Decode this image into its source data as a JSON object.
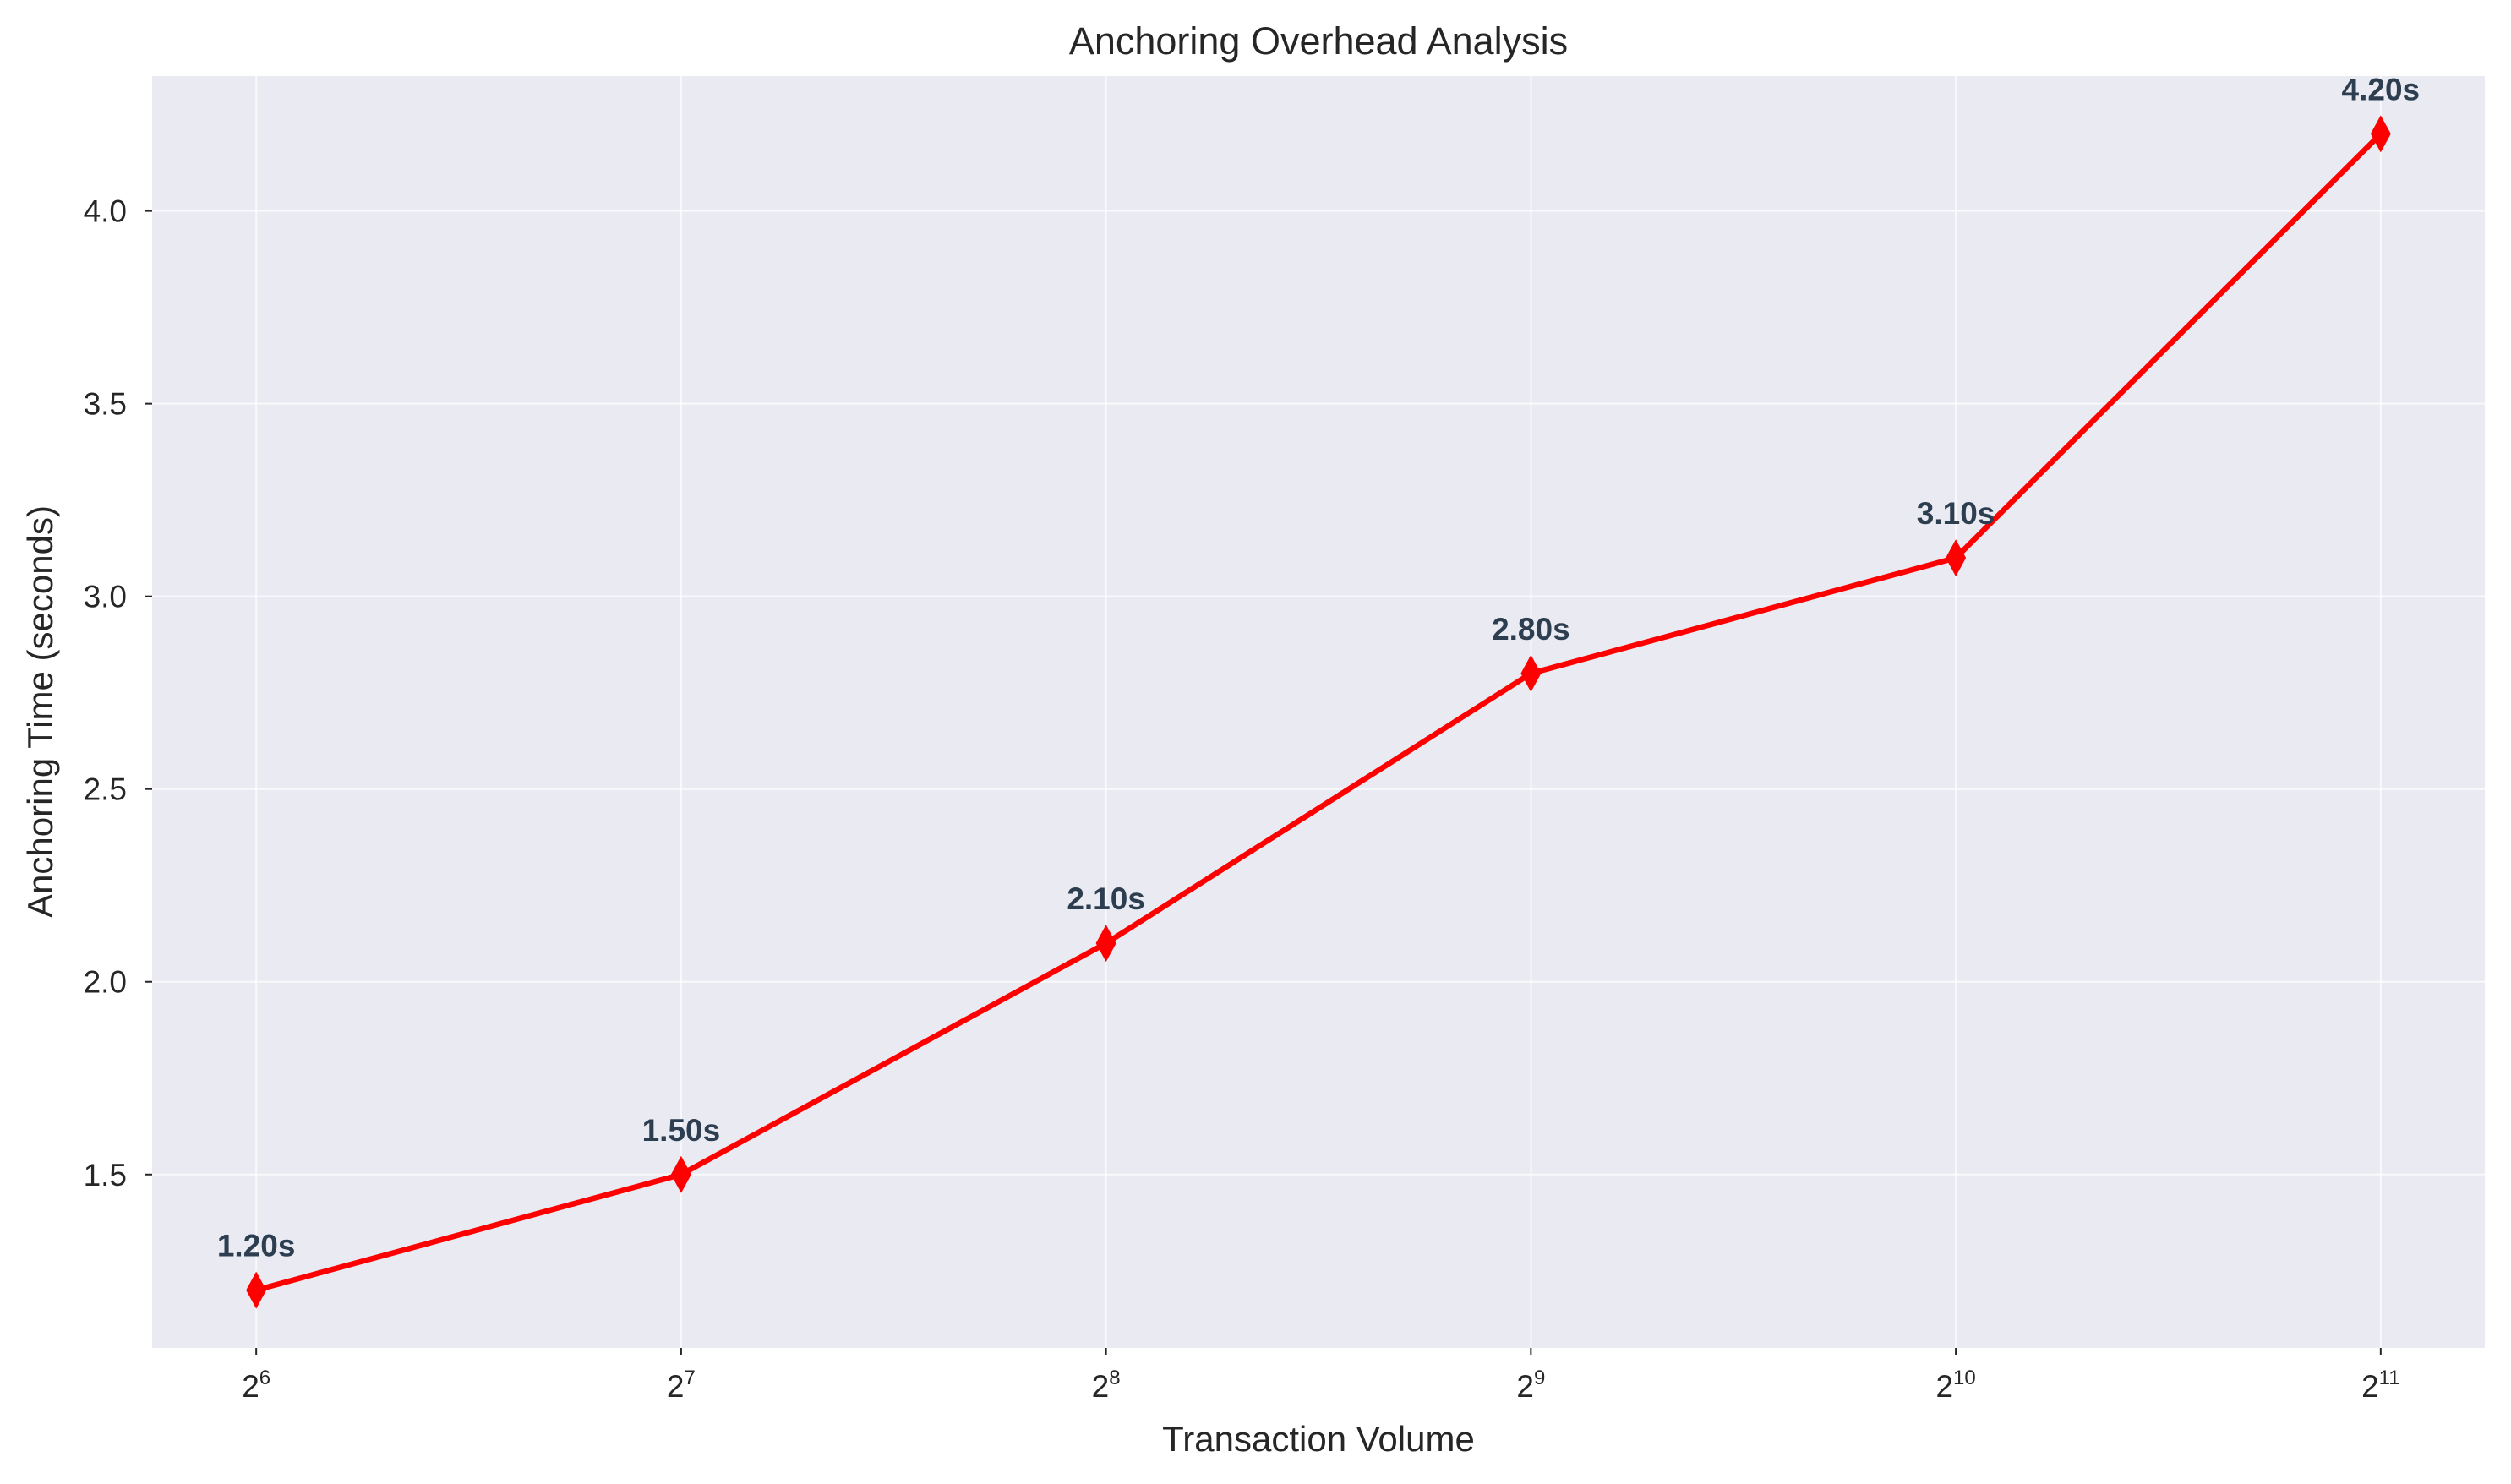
{
  "chart_data": {
    "type": "line",
    "title": "Anchoring Overhead Analysis",
    "xlabel": "Transaction Volume",
    "ylabel": "Anchoring Time (seconds)",
    "x_scale": "log2",
    "x": [
      64,
      128,
      256,
      512,
      1024,
      2048
    ],
    "x_tick_labels": [
      {
        "base": "2",
        "exp": "6"
      },
      {
        "base": "2",
        "exp": "7"
      },
      {
        "base": "2",
        "exp": "8"
      },
      {
        "base": "2",
        "exp": "9"
      },
      {
        "base": "2",
        "exp": "10"
      },
      {
        "base": "2",
        "exp": "11"
      }
    ],
    "y_ticks": [
      "1.5",
      "2.0",
      "2.5",
      "3.0",
      "3.5",
      "4.0"
    ],
    "ylim": [
      1.05,
      4.35
    ],
    "grid": true,
    "series": [
      {
        "color": "#ff0000",
        "marker": "thin-diamond",
        "values": [
          1.2,
          1.5,
          2.1,
          2.8,
          3.1,
          4.2
        ],
        "data_labels": [
          "1.20s",
          "1.50s",
          "2.10s",
          "2.80s",
          "3.10s",
          "4.20s"
        ]
      }
    ]
  }
}
